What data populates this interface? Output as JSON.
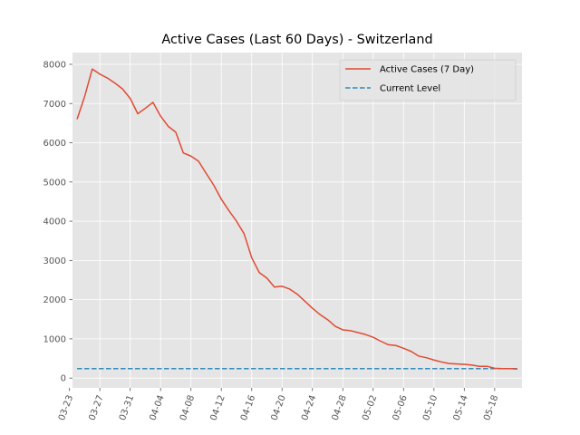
{
  "chart_data": {
    "type": "line",
    "title": "Active Cases (Last 60 Days) - Switzerland",
    "xlabel": "",
    "ylabel": "",
    "grid": true,
    "legend_position": "top-right",
    "x_tick_labels": [
      "03-23",
      "03-27",
      "03-31",
      "04-04",
      "04-08",
      "04-12",
      "04-16",
      "04-20",
      "04-24",
      "04-28",
      "05-02",
      "05-06",
      "05-10",
      "05-14",
      "05-18"
    ],
    "y_ticks": [
      0,
      1000,
      2000,
      3000,
      4000,
      5000,
      6000,
      7000,
      8000
    ],
    "x_range_days": [
      -0.6,
      58.6
    ],
    "ylim": [
      -250,
      8300
    ],
    "x_start_date": "03-24",
    "series": [
      {
        "name": "Active Cases (7 Day)",
        "color": "#E24A33",
        "style": "solid",
        "x": [
          0,
          1,
          2,
          3,
          4,
          5,
          6,
          7,
          8,
          9,
          10,
          11,
          12,
          13,
          14,
          15,
          16,
          17,
          18,
          19,
          20,
          21,
          22,
          23,
          24,
          25,
          26,
          27,
          28,
          29,
          30,
          31,
          32,
          33,
          34,
          35,
          36,
          37,
          38,
          39,
          40,
          41,
          42,
          43,
          44,
          45,
          46,
          47,
          48,
          49,
          50,
          51,
          52,
          53,
          54,
          55,
          56,
          57,
          58
        ],
        "values": [
          6600,
          7180,
          7880,
          7750,
          7650,
          7520,
          7370,
          7130,
          6740,
          6880,
          7030,
          6680,
          6420,
          6270,
          5740,
          5660,
          5530,
          5220,
          4920,
          4560,
          4270,
          4000,
          3680,
          3070,
          2690,
          2550,
          2320,
          2340,
          2270,
          2140,
          1960,
          1780,
          1620,
          1490,
          1320,
          1230,
          1210,
          1160,
          1110,
          1040,
          940,
          850,
          830,
          760,
          680,
          560,
          520,
          460,
          410,
          370,
          360,
          350,
          330,
          300,
          300,
          250,
          240,
          240,
          230
        ]
      },
      {
        "name": "Current Level",
        "color": "#348ABD",
        "style": "dashed",
        "x": [
          0,
          58
        ],
        "values": [
          240,
          240
        ]
      }
    ]
  }
}
